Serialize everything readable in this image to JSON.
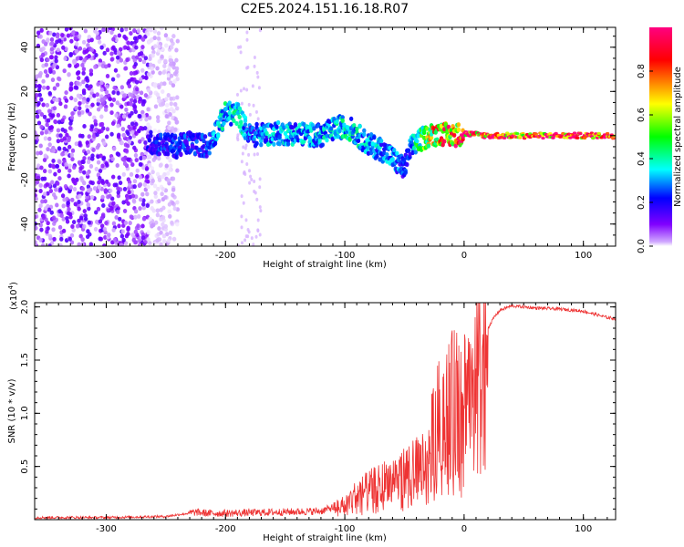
{
  "title": "C2E5.2024.151.16.18.R07",
  "chart_data": [
    {
      "type": "heatmap",
      "xlabel": "Height of straight line (km)",
      "ylabel": "Frequency (Hz)",
      "xlim": [
        -360,
        127
      ],
      "ylim": [
        -50,
        49
      ],
      "xticks": [
        -300,
        -200,
        -100,
        0,
        100
      ],
      "yticks": [
        -40,
        -20,
        0,
        20,
        40
      ],
      "colorbar": {
        "label": "Normalized spectral amplitude",
        "range": [
          0.0,
          1.0
        ],
        "ticks": [
          0.0,
          0.2,
          0.4,
          0.6,
          0.8
        ],
        "colors": [
          "#ffffff",
          "#8000ff",
          "#0000ff",
          "#00ffff",
          "#00ff00",
          "#ffff00",
          "#ff0000",
          "#ff0080"
        ]
      },
      "ridge": {
        "x": [
          -265,
          -250,
          -240,
          -230,
          -215,
          -200,
          -190,
          -180,
          -160,
          -140,
          -120,
          -105,
          -95,
          -80,
          -70,
          -60,
          -55,
          -50,
          -45,
          -40,
          -30,
          -20,
          -10,
          0,
          20,
          60,
          100,
          127
        ],
        "y": [
          -3,
          -4,
          -5,
          -3,
          -5,
          10,
          10,
          0,
          1,
          1,
          0,
          4,
          3,
          -4,
          -6,
          -10,
          -13,
          -15,
          -6,
          -3,
          0,
          1,
          0,
          1,
          0,
          0,
          0,
          0
        ],
        "amplitude": [
          0.25,
          0.3,
          0.3,
          0.3,
          0.3,
          0.45,
          0.45,
          0.35,
          0.4,
          0.4,
          0.4,
          0.45,
          0.45,
          0.4,
          0.4,
          0.35,
          0.35,
          0.3,
          0.35,
          0.5,
          0.7,
          0.8,
          0.85,
          0.9,
          0.95,
          0.95,
          0.95,
          0.95
        ]
      },
      "noise_region_x": [
        -360,
        -255
      ]
    },
    {
      "type": "line",
      "xlabel": "Height of straight line (km)",
      "ylabel": "SNR (10 * v/v)",
      "yscale_label": "(x10",
      "yscale_exp": "4",
      "yscale_close": ")",
      "xlim": [
        -360,
        127
      ],
      "ylim": [
        0,
        20400
      ],
      "xticks": [
        -300,
        -200,
        -100,
        0,
        100
      ],
      "yticks": [
        5000,
        10000,
        15000,
        20000
      ],
      "ytick_labels": [
        "0.5",
        "1.0",
        "1.5",
        "2.0"
      ],
      "color": "#ee3333",
      "series": [
        {
          "x": [
            -360,
            -300,
            -250,
            -225,
            -215,
            -200,
            -160,
            -120,
            -100,
            -90,
            -80,
            -70,
            -60,
            -50,
            -40,
            -30,
            -25,
            -20,
            -15,
            -10,
            -5,
            0,
            5,
            10,
            20,
            25,
            30,
            40,
            50,
            60,
            80,
            100,
            110,
            120,
            127
          ],
          "y": [
            200,
            200,
            300,
            700,
            600,
            600,
            700,
            800,
            1500,
            2500,
            3000,
            3500,
            4000,
            4500,
            5000,
            6000,
            9000,
            10000,
            11000,
            11500,
            12000,
            12500,
            13500,
            15000,
            18000,
            19000,
            19700,
            20100,
            20000,
            19900,
            19800,
            19600,
            19300,
            19000,
            18900
          ]
        }
      ]
    }
  ]
}
